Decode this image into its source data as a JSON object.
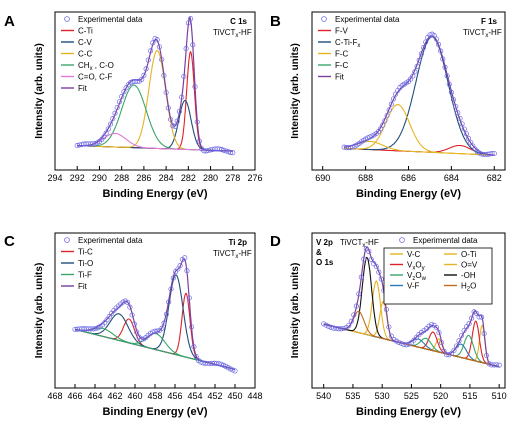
{
  "figure": {
    "width": 520,
    "height": 447
  },
  "chart_data": [
    {
      "panel": "A",
      "type": "line",
      "region_label": "C 1s",
      "sample_label": "TiVCTx-HF",
      "xlabel": "Binding Energy (eV)",
      "ylabel": "Intensity (arb. units)",
      "xlim": [
        294,
        276
      ],
      "xticks": [
        294,
        292,
        290,
        288,
        286,
        284,
        282,
        280,
        278,
        276
      ],
      "legend": [
        {
          "label": "Experimental data",
          "color": "#6a6ae6",
          "marker": "circle"
        },
        {
          "label": "C-Ti",
          "color": "#e0202a"
        },
        {
          "label": "C-V",
          "color": "#1f4e79"
        },
        {
          "label": "C-C",
          "color": "#e6b422"
        },
        {
          "label": "CHx , C-O",
          "color": "#3aa66a"
        },
        {
          "label": "C=O, C-F",
          "color": "#e07ad8"
        },
        {
          "label": "Fit",
          "color": "#7b3fa0"
        }
      ],
      "x_range": [
        292,
        278
      ],
      "baseline": {
        "start": 0.12,
        "end": 0.08
      },
      "peaks": [
        {
          "name": "C-Ti",
          "center": 281.8,
          "width": 0.35,
          "amp": 0.72
        },
        {
          "name": "C-V",
          "center": 282.3,
          "width": 0.55,
          "amp": 0.36
        },
        {
          "name": "C-C",
          "center": 284.8,
          "width": 0.75,
          "amp": 0.72
        },
        {
          "name": "CHx , C-O",
          "center": 286.9,
          "width": 1.1,
          "amp": 0.46
        },
        {
          "name": "C=O, C-F",
          "center": 288.6,
          "width": 1.0,
          "amp": 0.1
        }
      ]
    },
    {
      "panel": "B",
      "type": "line",
      "region_label": "F 1s",
      "sample_label": "TiVCTx-HF",
      "xlabel": "Binding Energy (eV)",
      "ylabel": "Intensity (arb. units)",
      "xlim": [
        690.5,
        681.5
      ],
      "xticks": [
        690,
        688,
        686,
        684,
        682
      ],
      "legend": [
        {
          "label": "Experimental data",
          "color": "#6a6ae6",
          "marker": "circle"
        },
        {
          "label": "F-V",
          "color": "#e0202a"
        },
        {
          "label": "C-Ti-Fx",
          "color": "#1f4e79"
        },
        {
          "label": "F-C",
          "color": "#e6b422"
        },
        {
          "label": "F-C",
          "color": "#3aa66a"
        },
        {
          "label": "Fit",
          "color": "#7b3fa0"
        }
      ],
      "x_range": [
        689,
        682
      ],
      "baseline": {
        "start": 0.1,
        "end": 0.05
      },
      "peaks": [
        {
          "name": "F-V",
          "center": 683.6,
          "width": 0.5,
          "amp": 0.06
        },
        {
          "name": "C-Ti-Fx",
          "center": 684.9,
          "width": 0.75,
          "amp": 0.85
        },
        {
          "name": "F-C",
          "center": 686.5,
          "width": 0.55,
          "amp": 0.34
        },
        {
          "name": "F-C",
          "center": 687.8,
          "width": 0.6,
          "amp": 0.06
        }
      ]
    },
    {
      "panel": "C",
      "type": "line",
      "region_label": "Ti 2p",
      "sample_label": "TiVCTx-HF",
      "xlabel": "Binding Energy (eV)",
      "ylabel": "Intensity (arb. units)",
      "xlim": [
        468,
        448
      ],
      "xticks": [
        468,
        466,
        464,
        462,
        460,
        458,
        456,
        454,
        452,
        450,
        448
      ],
      "legend": [
        {
          "label": "Experimental data",
          "color": "#6a6ae6",
          "marker": "circle"
        },
        {
          "label": "Ti-C",
          "color": "#e0202a"
        },
        {
          "label": "Ti-O",
          "color": "#1f4e79"
        },
        {
          "label": "Ti-F",
          "color": "#3aa66a"
        },
        {
          "label": "Fit",
          "color": "#7b3fa0"
        }
      ],
      "x_range": [
        466,
        450
      ],
      "baseline": {
        "start": 0.38,
        "end": 0.08
      },
      "peaks": [
        {
          "name": "Ti-C",
          "center": 454.9,
          "width": 0.4,
          "amp": 0.48
        },
        {
          "name": "Ti-C",
          "center": 460.6,
          "width": 0.55,
          "amp": 0.18
        },
        {
          "name": "Ti-O",
          "center": 455.9,
          "width": 0.7,
          "amp": 0.6
        },
        {
          "name": "Ti-O",
          "center": 461.6,
          "width": 0.9,
          "amp": 0.2
        },
        {
          "name": "Ti-F",
          "center": 457.9,
          "width": 0.9,
          "amp": 0.12
        },
        {
          "name": "Ti-F",
          "center": 463.2,
          "width": 1.0,
          "amp": 0.06
        }
      ]
    },
    {
      "panel": "D",
      "type": "line",
      "region_label": "V 2p & O 1s",
      "sample_label": "TiVCTx-HF",
      "xlabel": "Binding Energy (eV)",
      "ylabel": "Intensity (arb. units)",
      "xlim": [
        542,
        509
      ],
      "xticks": [
        540,
        535,
        530,
        525,
        520,
        515,
        510
      ],
      "legend": [
        {
          "label": "Experimental data",
          "color": "#6a6ae6",
          "marker": "circle"
        },
        {
          "label": "V-C",
          "color": "#e6b422"
        },
        {
          "label": "VxOy",
          "color": "#e0202a"
        },
        {
          "label": "VzOw",
          "color": "#3aa66a"
        },
        {
          "label": "V-F",
          "color": "#2a7ab8"
        },
        {
          "label": "O-Ti",
          "color": "#e6b422"
        },
        {
          "label": "O=V",
          "color": "#e6b422"
        },
        {
          "label": "-OH",
          "color": "#111111"
        },
        {
          "label": "H2O",
          "color": "#c46a1a"
        }
      ],
      "x_range": [
        540,
        510
      ],
      "baseline": {
        "start": 0.42,
        "end": 0.1
      },
      "peaks": [
        {
          "name": "V-C",
          "center": 512.9,
          "width": 0.45,
          "amp": 0.28
        },
        {
          "name": "VxOy",
          "center": 514.0,
          "width": 0.6,
          "amp": 0.3
        },
        {
          "name": "VzOw",
          "center": 515.2,
          "width": 0.8,
          "amp": 0.18
        },
        {
          "name": "V-F",
          "center": 516.5,
          "width": 0.9,
          "amp": 0.1
        },
        {
          "name": "V-C",
          "center": 520.3,
          "width": 0.5,
          "amp": 0.1
        },
        {
          "name": "VxOy",
          "center": 521.3,
          "width": 0.7,
          "amp": 0.14
        },
        {
          "name": "VzOw",
          "center": 522.5,
          "width": 0.9,
          "amp": 0.08
        },
        {
          "name": "V-F",
          "center": 523.8,
          "width": 1.0,
          "amp": 0.06
        },
        {
          "name": "O-Ti",
          "center": 529.8,
          "width": 0.6,
          "amp": 0.28
        },
        {
          "name": "O=V",
          "center": 531.0,
          "width": 0.7,
          "amp": 0.42
        },
        {
          "name": "-OH",
          "center": 532.6,
          "width": 0.8,
          "amp": 0.58
        },
        {
          "name": "H2O",
          "center": 534.0,
          "width": 0.9,
          "amp": 0.16
        }
      ]
    }
  ]
}
